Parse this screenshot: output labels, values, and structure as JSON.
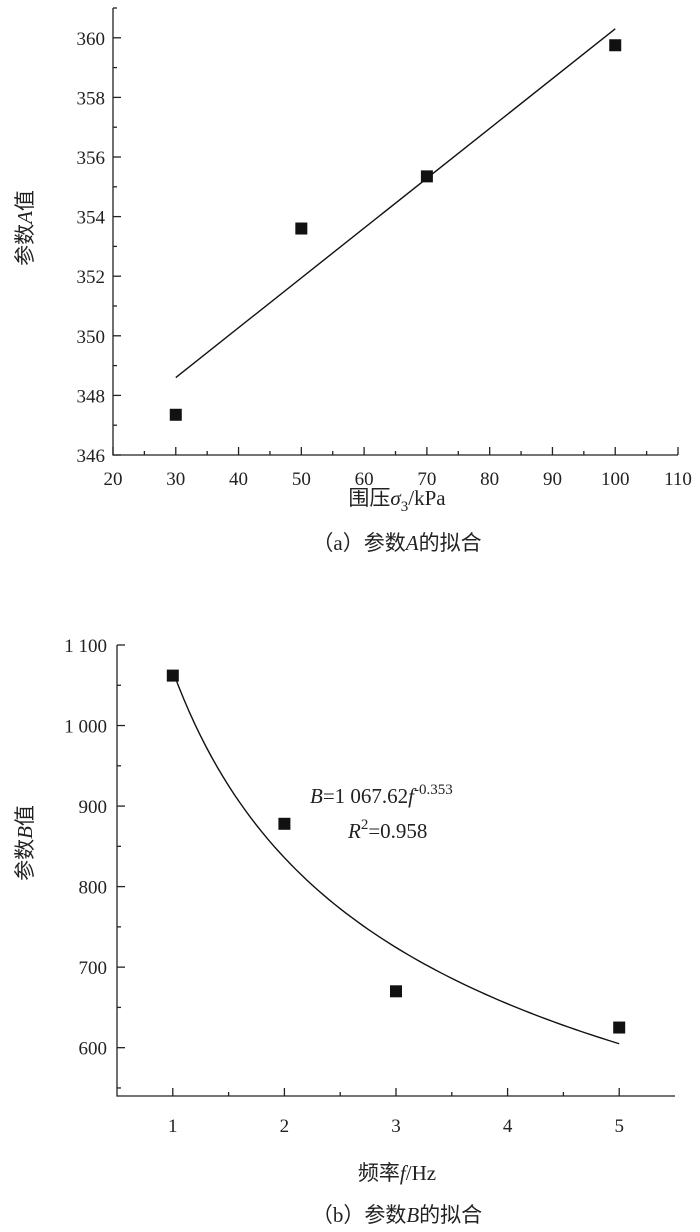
{
  "chart_data": [
    {
      "id": "a",
      "type": "scatter",
      "title": "",
      "caption": "（a）参数A的拟合",
      "xlabel": "围压σ3/kPa",
      "ylabel": "参数A值",
      "xlim": [
        20,
        110
      ],
      "ylim": [
        346,
        361
      ],
      "xticks": [
        20,
        30,
        40,
        50,
        60,
        70,
        80,
        90,
        100,
        110
      ],
      "yticks": [
        346,
        348,
        350,
        352,
        354,
        356,
        358,
        360
      ],
      "points": [
        {
          "x": 30,
          "y": 347.35
        },
        {
          "x": 50,
          "y": 353.6
        },
        {
          "x": 70,
          "y": 355.35
        },
        {
          "x": 100,
          "y": 359.75
        }
      ],
      "fit": {
        "type": "linear",
        "x": [
          30,
          100
        ],
        "y": [
          348.6,
          360.3
        ]
      }
    },
    {
      "id": "b",
      "type": "scatter",
      "title": "",
      "caption": "（b）参数B的拟合",
      "xlabel": "频率f/Hz",
      "ylabel": "参数B值",
      "xlim": [
        0.5,
        5.5
      ],
      "ylim": [
        540,
        1100
      ],
      "xticks": [
        1,
        2,
        3,
        4,
        5
      ],
      "yticks": [
        600,
        700,
        800,
        900,
        1000,
        1100
      ],
      "ytick_labels": [
        "600",
        "700",
        "800",
        "900",
        "1 000",
        "1 100"
      ],
      "points": [
        {
          "x": 1,
          "y": 1062
        },
        {
          "x": 2,
          "y": 878
        },
        {
          "x": 3,
          "y": 670
        },
        {
          "x": 5,
          "y": 625
        }
      ],
      "fit": {
        "type": "power",
        "a": 1067.62,
        "b": -0.353,
        "x_range": [
          1,
          5
        ]
      },
      "equation": {
        "prefix": "B=1 067.62",
        "var": "f",
        "exponent": "-0.353",
        "r2_label": "R",
        "r2_sup": "2",
        "r2_value": "=0.958"
      }
    }
  ]
}
